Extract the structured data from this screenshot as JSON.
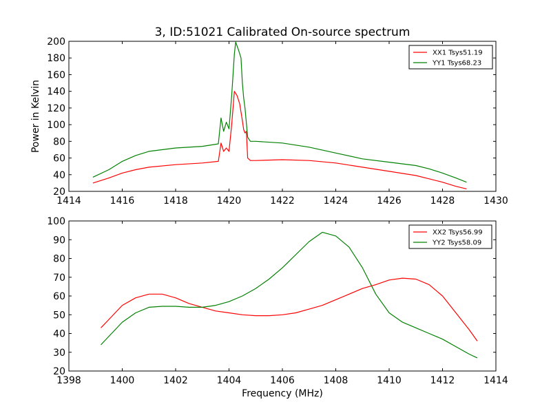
{
  "chart_data": [
    {
      "type": "line",
      "title": "3, ID:51021 Calibrated On-source spectrum",
      "xlabel": "",
      "ylabel": "Power in Kelvin",
      "xlim": [
        1414,
        1430
      ],
      "ylim": [
        20,
        200
      ],
      "xticks": [
        "1414",
        "1416",
        "1418",
        "1420",
        "1422",
        "1424",
        "1426",
        "1428",
        "1430"
      ],
      "yticks": [
        "20",
        "40",
        "60",
        "80",
        "100",
        "120",
        "140",
        "160",
        "180",
        "200"
      ],
      "legend_position": "top-right",
      "series": [
        {
          "name": "XX1 Tsys51.19",
          "color": "#ff0000",
          "x": [
            1414.9,
            1415.5,
            1416.0,
            1416.5,
            1417.0,
            1418.0,
            1419.0,
            1419.6,
            1419.7,
            1419.8,
            1419.9,
            1420.0,
            1420.1,
            1420.2,
            1420.3,
            1420.4,
            1420.5,
            1420.55,
            1420.6,
            1420.65,
            1420.7,
            1420.8,
            1421.0,
            1422.0,
            1423.0,
            1424.0,
            1425.0,
            1426.0,
            1427.0,
            1427.5,
            1428.0,
            1428.5,
            1428.9
          ],
          "y": [
            30,
            36,
            42,
            46,
            49,
            52,
            54,
            56,
            78,
            68,
            72,
            68,
            100,
            140,
            135,
            125,
            105,
            94,
            90,
            92,
            60,
            57,
            57,
            58,
            57,
            54,
            49,
            44,
            39,
            35,
            31,
            26,
            23
          ]
        },
        {
          "name": "YY1 Tsys68.23",
          "color": "#008000",
          "x": [
            1414.9,
            1415.5,
            1416.0,
            1416.5,
            1417.0,
            1418.0,
            1419.0,
            1419.6,
            1419.7,
            1419.8,
            1419.9,
            1420.0,
            1420.1,
            1420.2,
            1420.25,
            1420.35,
            1420.45,
            1420.5,
            1420.55,
            1420.6,
            1420.7,
            1420.8,
            1421.0,
            1422.0,
            1423.0,
            1424.0,
            1425.0,
            1426.0,
            1427.0,
            1427.5,
            1428.0,
            1428.5,
            1428.9
          ],
          "y": [
            37,
            46,
            56,
            63,
            68,
            72,
            74,
            77,
            108,
            92,
            103,
            95,
            135,
            185,
            199,
            190,
            180,
            150,
            132,
            120,
            85,
            80,
            80,
            78,
            73,
            66,
            59,
            55,
            51,
            47,
            42,
            36,
            31
          ]
        }
      ]
    },
    {
      "type": "line",
      "title": "",
      "xlabel": "Frequency (MHz)",
      "ylabel": "",
      "xlim": [
        1398,
        1414
      ],
      "ylim": [
        20,
        100
      ],
      "xticks": [
        "1398",
        "1400",
        "1402",
        "1404",
        "1406",
        "1408",
        "1410",
        "1412",
        "1414"
      ],
      "yticks": [
        "20",
        "30",
        "40",
        "50",
        "60",
        "70",
        "80",
        "90",
        "100"
      ],
      "legend_position": "top-right",
      "series": [
        {
          "name": "XX2 Tsys56.99",
          "color": "#ff0000",
          "x": [
            1399.2,
            1399.6,
            1400.0,
            1400.5,
            1401.0,
            1401.5,
            1402.0,
            1402.5,
            1403.0,
            1403.5,
            1404.0,
            1404.5,
            1405.0,
            1405.5,
            1406.0,
            1406.5,
            1407.0,
            1407.5,
            1408.0,
            1408.5,
            1409.0,
            1409.5,
            1410.0,
            1410.5,
            1411.0,
            1411.5,
            1412.0,
            1412.5,
            1413.0,
            1413.3
          ],
          "y": [
            43,
            49,
            55,
            59,
            61,
            61,
            59,
            56,
            54,
            52,
            51,
            50,
            49.5,
            49.5,
            50,
            51,
            53,
            55,
            58,
            61,
            64,
            66,
            68.5,
            69.5,
            69,
            66,
            60,
            51,
            42,
            36
          ]
        },
        {
          "name": "YY2 Tsys58.09",
          "color": "#008000",
          "x": [
            1399.2,
            1399.6,
            1400.0,
            1400.5,
            1401.0,
            1401.5,
            1402.0,
            1402.5,
            1403.0,
            1403.5,
            1404.0,
            1404.5,
            1405.0,
            1405.5,
            1406.0,
            1406.5,
            1407.0,
            1407.5,
            1408.0,
            1408.5,
            1409.0,
            1409.5,
            1410.0,
            1410.5,
            1411.0,
            1411.5,
            1412.0,
            1412.5,
            1413.0,
            1413.3
          ],
          "y": [
            34,
            40,
            46,
            51,
            54,
            54.5,
            54.5,
            54,
            54,
            55,
            57,
            60,
            64,
            69,
            75,
            82,
            89,
            94,
            92,
            86,
            75,
            61,
            51,
            46,
            43,
            40,
            37,
            33,
            29,
            27
          ]
        }
      ]
    }
  ]
}
